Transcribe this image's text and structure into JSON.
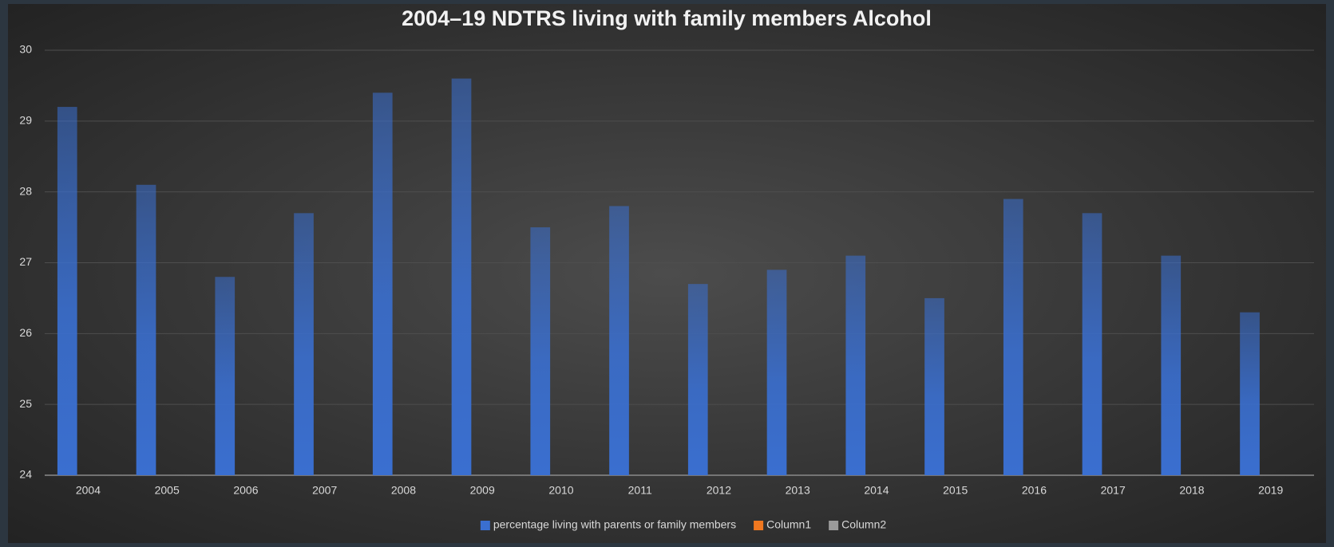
{
  "chart_data": {
    "type": "bar",
    "title": "2004–19 NDTRS living with family members Alcohol",
    "categories": [
      "2004",
      "2005",
      "2006",
      "2007",
      "2008",
      "2009",
      "2010",
      "2011",
      "2012",
      "2013",
      "2014",
      "2015",
      "2016",
      "2017",
      "2018",
      "2019"
    ],
    "series": [
      {
        "name": "percentage living with parents or family members",
        "color": "#3a6fd0",
        "values": [
          29.2,
          28.1,
          26.8,
          27.7,
          29.4,
          29.6,
          27.5,
          27.8,
          26.7,
          26.9,
          27.1,
          26.5,
          27.9,
          27.7,
          27.1,
          26.3
        ]
      },
      {
        "name": "Column1",
        "color": "#f07820",
        "values": [
          null,
          null,
          null,
          null,
          null,
          null,
          null,
          null,
          null,
          null,
          null,
          null,
          null,
          null,
          null,
          null
        ]
      },
      {
        "name": "Column2",
        "color": "#9a9a9a",
        "values": [
          null,
          null,
          null,
          null,
          null,
          null,
          null,
          null,
          null,
          null,
          null,
          null,
          null,
          null,
          null,
          null
        ]
      }
    ],
    "ylim": [
      24,
      30
    ],
    "yticks": [
      24,
      25,
      26,
      27,
      28,
      29,
      30
    ],
    "grid": true,
    "legend": "bottom"
  }
}
